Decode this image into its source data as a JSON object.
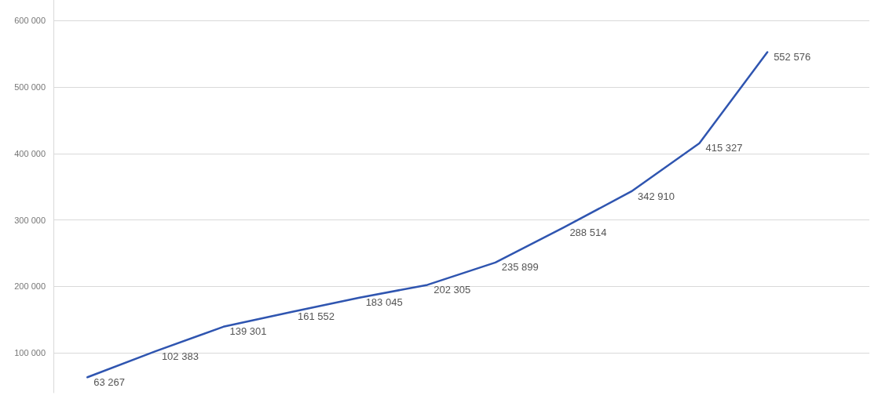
{
  "chart_data": {
    "type": "line",
    "categories": [
      null,
      null,
      null,
      null,
      null,
      null,
      null,
      null,
      null,
      null,
      null,
      null
    ],
    "series": [
      {
        "color": "#2f55b0",
        "values": [
          63267,
          102383,
          139301,
          161552,
          183045,
          202305,
          235899,
          288514,
          342910,
          415327,
          552576,
          null
        ]
      }
    ],
    "ylim": [
      40000,
      631000
    ],
    "yticks": [
      {
        "value": 100000,
        "label": "100 000"
      },
      {
        "value": 200000,
        "label": "200 000"
      },
      {
        "value": 300000,
        "label": "300 000"
      },
      {
        "value": 400000,
        "label": "400 000"
      },
      {
        "value": 500000,
        "label": "500 000"
      },
      {
        "value": 600000,
        "label": "600 000"
      }
    ],
    "grid": "y",
    "data_labels": true,
    "marker": "none",
    "line_style": "solid"
  }
}
